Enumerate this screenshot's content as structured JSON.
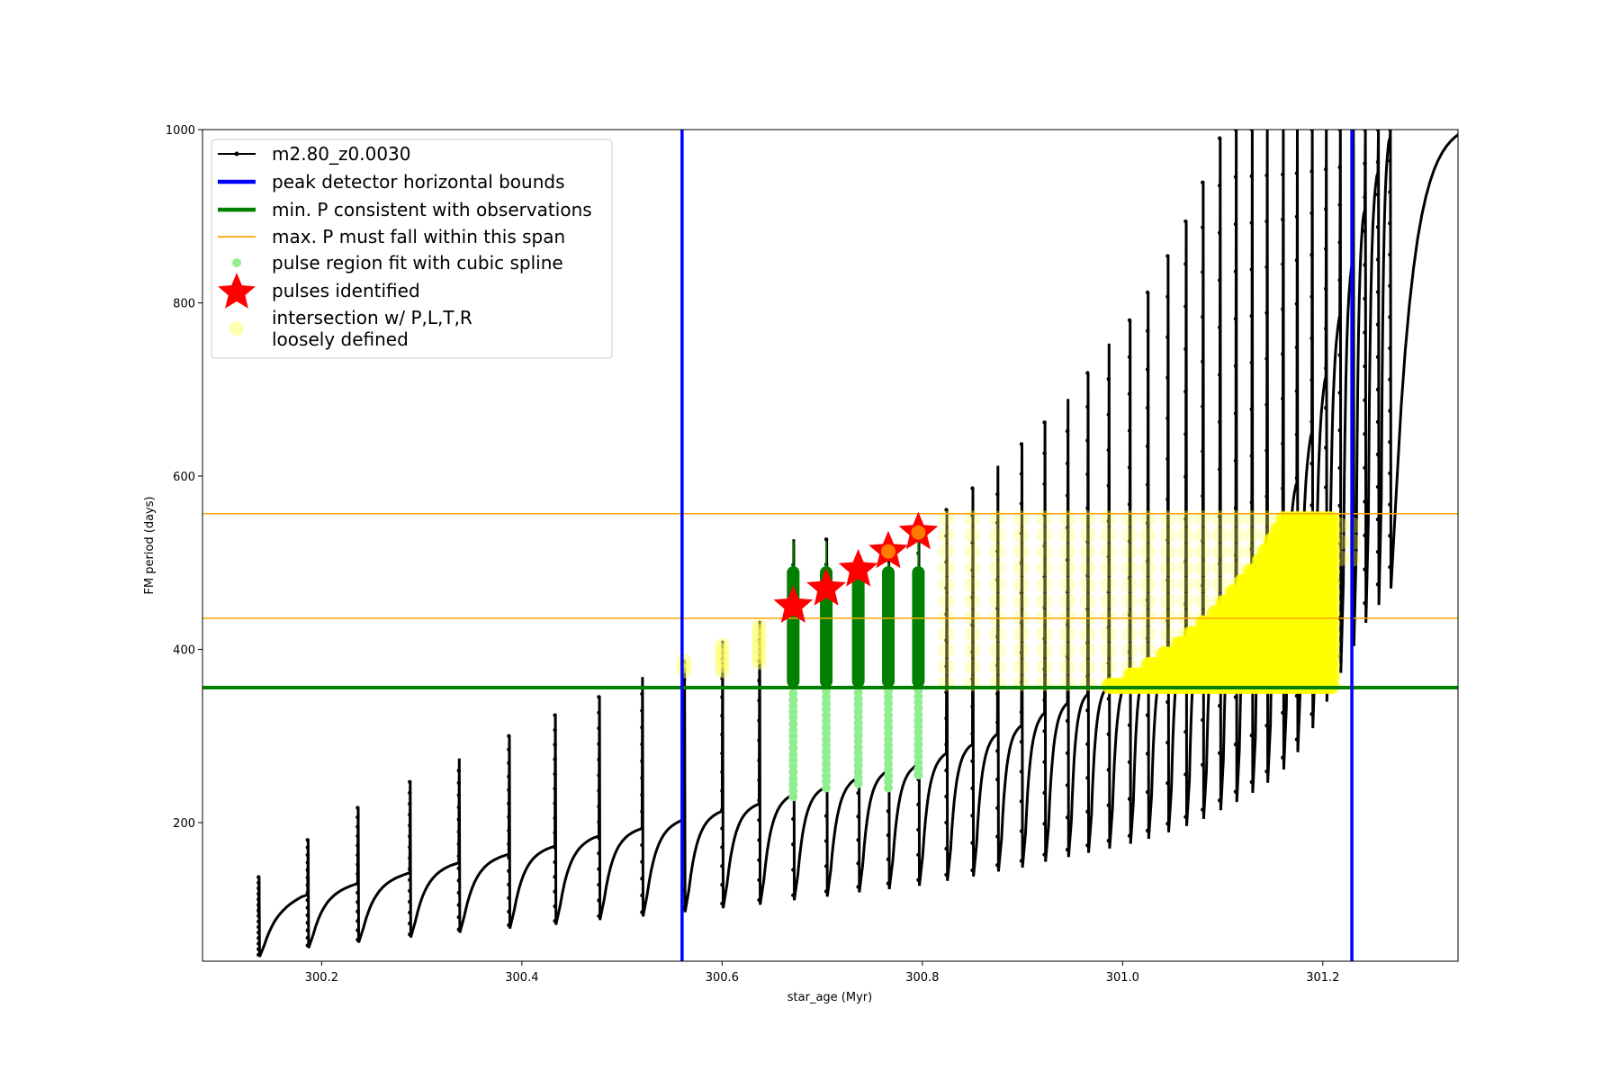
{
  "chart_data": {
    "type": "scatter",
    "xlabel": "star_age (Myr)",
    "ylabel": "FM period (days)",
    "xlim": [
      300.081,
      301.335
    ],
    "ylim": [
      40,
      1000
    ],
    "xticks": [
      300.2,
      300.4,
      300.6,
      300.8,
      301.0,
      301.2
    ],
    "xtick_labels": [
      "300.2",
      "300.4",
      "300.6",
      "300.8",
      "301.0",
      "301.2"
    ],
    "yticks": [
      200,
      400,
      600,
      800,
      1000
    ],
    "ytick_labels": [
      "200",
      "400",
      "600",
      "800",
      "1000"
    ],
    "grid": false,
    "legend_position": "top-left",
    "legend": [
      {
        "label": "m2.80_z0.0030",
        "kind": "line-marker",
        "color": "#000000"
      },
      {
        "label": "peak detector horizontal bounds",
        "kind": "thick-line",
        "color": "#0000ff"
      },
      {
        "label": "min. P consistent with observations",
        "kind": "thick-line",
        "color": "#008000"
      },
      {
        "label": "max. P must fall within this span",
        "kind": "thin-line",
        "color": "#ffa500"
      },
      {
        "label": "pulse region fit with cubic spline",
        "kind": "dot",
        "color": "#90ee90"
      },
      {
        "label": "pulses identified",
        "kind": "star",
        "color": "#ff0000"
      },
      {
        "label": "intersection w/ P,L,T,R",
        "label2": "loosely defined",
        "kind": "dot",
        "color": "#ffff00"
      }
    ],
    "vertical_bounds": [
      300.56,
      301.229
    ],
    "min_period": 355.8,
    "max_period_span": [
      435.9,
      556.6
    ],
    "pulse_times": [
      300.137,
      300.186,
      300.236,
      300.288,
      300.337,
      300.387,
      300.433,
      300.477,
      300.52,
      300.562,
      300.6,
      300.637,
      300.671,
      300.704,
      300.736,
      300.766,
      300.796,
      300.824,
      300.85,
      300.875,
      300.899,
      300.922,
      300.945,
      300.965,
      300.986,
      301.007,
      301.025,
      301.045,
      301.063,
      301.08,
      301.097,
      301.113,
      301.129,
      301.144,
      301.16,
      301.174,
      301.189,
      301.203,
      301.217,
      301.23,
      301.242,
      301.255,
      301.267
    ],
    "pulse_peaks": [
      137,
      180,
      217,
      247,
      274,
      300,
      324,
      345,
      368,
      386,
      410,
      433,
      527,
      527,
      505,
      520,
      540,
      561,
      586,
      612,
      637,
      662,
      689,
      719,
      753,
      780,
      812,
      854,
      894,
      939,
      990,
      1000,
      1000,
      1000,
      1000,
      1000,
      1000,
      1000,
      1000,
      1000,
      1000,
      1000,
      1000
    ],
    "interpulse_max": {
      "t": [
        300.137,
        300.18,
        300.23,
        300.28,
        300.33,
        300.38,
        300.43,
        300.47,
        300.52,
        300.56,
        300.6,
        300.64,
        300.67,
        300.7,
        300.73,
        300.76,
        300.79,
        300.82,
        300.85,
        300.87,
        300.9,
        300.92,
        300.94,
        300.96,
        300.98,
        301.0,
        301.03,
        301.06,
        301.08,
        301.1,
        301.12,
        301.14,
        301.16,
        301.18,
        301.2,
        301.22,
        301.24,
        301.27
      ],
      "p": [
        95,
        115,
        128,
        140,
        152,
        162,
        172,
        183,
        193,
        203,
        213,
        222,
        232,
        240,
        250,
        258,
        265,
        278,
        290,
        300,
        312,
        325,
        335,
        345,
        355,
        365,
        385,
        410,
        430,
        455,
        480,
        510,
        550,
        610,
        700,
        800,
        900,
        1000
      ]
    },
    "pulses_identified": {
      "t": [
        300.671,
        300.704,
        300.736,
        300.766,
        300.796
      ],
      "p": [
        450,
        470,
        492,
        513,
        535
      ]
    },
    "spline_regions": {
      "t": [
        300.671,
        300.704,
        300.736,
        300.766,
        300.796
      ],
      "low": [
        230,
        240,
        245,
        240,
        255
      ],
      "high": [
        525,
        525,
        500,
        500,
        525
      ]
    }
  }
}
